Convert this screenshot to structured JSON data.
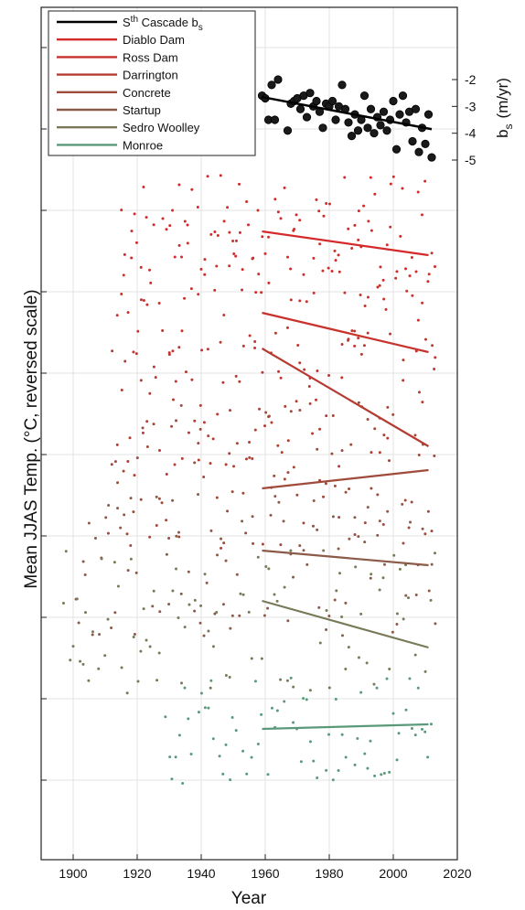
{
  "chart_data": {
    "type": "scatter",
    "xlabel": "Year",
    "ylabel": "Mean JJAS Temp. (°C, reversed scale)",
    "right_ylabel": "b",
    "right_ylabel_sub": "s",
    "right_ylabel_unit": "(m/yr)",
    "xlim": [
      1890,
      2020
    ],
    "x_ticks": [
      1900,
      1920,
      1940,
      1960,
      1980,
      2000,
      2020
    ],
    "right_ylim": [
      -1.4,
      -5.5
    ],
    "right_ticks": [
      -2,
      -3,
      -4,
      -5
    ],
    "grid": true,
    "legend_position": "top-left",
    "legend": [
      {
        "key": "cascade",
        "label_pre": "S",
        "label_sup": "th",
        "label_mid": " Cascade b",
        "label_sub": "s",
        "color": "#000000"
      },
      {
        "key": "diablo",
        "label": "Diablo Dam",
        "color": "#d42a2a"
      },
      {
        "key": "ross",
        "label": "Ross Dam",
        "color": "#c8322d"
      },
      {
        "key": "darrington",
        "label": "Darrington",
        "color": "#b43c32"
      },
      {
        "key": "concrete",
        "label": "Concrete",
        "color": "#a04a3a"
      },
      {
        "key": "startup",
        "label": "Startup",
        "color": "#8c5a48"
      },
      {
        "key": "sedro",
        "label": "Sedro Woolley",
        "color": "#787a58"
      },
      {
        "key": "monroe",
        "label": "Monroe",
        "color": "#5a9a7a"
      }
    ],
    "cascade_bs": {
      "years": [
        1959,
        1960,
        1961,
        1962,
        1963,
        1964,
        1967,
        1968,
        1969,
        1970,
        1971,
        1972,
        1973,
        1974,
        1975,
        1976,
        1977,
        1978,
        1979,
        1980,
        1981,
        1982,
        1983,
        1984,
        1985,
        1986,
        1987,
        1988,
        1989,
        1990,
        1991,
        1992,
        1993,
        1994,
        1995,
        1996,
        1997,
        1998,
        1999,
        2000,
        2001,
        2002,
        2003,
        2004,
        2005,
        2006,
        2007,
        2008,
        2009,
        2010,
        2011,
        2012
      ],
      "values": [
        -2.6,
        -2.7,
        -3.5,
        -2.2,
        -3.5,
        -2.0,
        -3.9,
        -2.9,
        -2.8,
        -2.7,
        -3.1,
        -2.6,
        -3.4,
        -2.5,
        -3.0,
        -2.8,
        -3.2,
        -3.8,
        -2.9,
        -3.0,
        -2.8,
        -3.5,
        -3.0,
        -2.2,
        -3.1,
        -3.6,
        -4.1,
        -3.3,
        -3.9,
        -3.5,
        -2.6,
        -3.8,
        -3.1,
        -4.0,
        -3.4,
        -3.7,
        -3.2,
        -3.9,
        -3.5,
        -2.8,
        -4.6,
        -3.3,
        -2.6,
        -3.6,
        -3.2,
        -4.3,
        -3.1,
        -4.7,
        -3.8,
        -4.4,
        -3.3,
        -4.9
      ],
      "trend": {
        "x": [
          1959,
          2012
        ],
        "y": [
          -2.65,
          -3.85
        ]
      }
    },
    "temperature_series": [
      {
        "key": "diablo",
        "x_start": 1915,
        "x_end": 2013,
        "trend_y": [
          -4.4,
          -6.1
        ]
      },
      {
        "key": "ross",
        "x_start": 1914,
        "x_end": 2013,
        "trend_y": [
          -1.2,
          -2.5
        ]
      },
      {
        "key": "darrington",
        "x_start": 1912,
        "x_end": 2013,
        "trend_y": [
          0.8,
          -2.1
        ]
      },
      {
        "key": "concrete",
        "x_start": 1910,
        "x_end": 2013,
        "trend_y": [
          2.7,
          2.2
        ]
      },
      {
        "key": "startup",
        "x_start": 1900,
        "x_end": 2013,
        "trend_y": [
          -0.6,
          -0.8
        ]
      },
      {
        "key": "sedro",
        "x_start": 1897,
        "x_end": 2013,
        "trend_y": [
          -1.8,
          -0.2
        ]
      },
      {
        "key": "monroe",
        "x_start": 1929,
        "x_end": 2013,
        "trend_y": [
          -0.1,
          0.1
        ]
      }
    ]
  }
}
